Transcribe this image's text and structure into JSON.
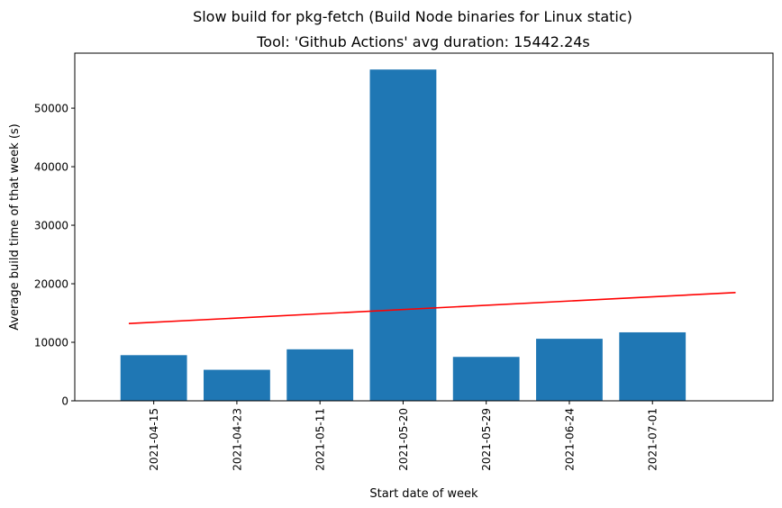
{
  "chart_data": {
    "type": "bar",
    "suptitle": "Slow build for pkg-fetch (Build Node binaries for Linux static)",
    "title": "Tool: 'Github Actions' avg duration: 15442.24s",
    "xlabel": "Start date of week",
    "ylabel": "Average build time of that week (s)",
    "categories": [
      "2021-04-15",
      "2021-04-23",
      "2021-05-11",
      "2021-05-20",
      "2021-05-29",
      "2021-06-24",
      "2021-07-01"
    ],
    "values": [
      7800,
      5300,
      8800,
      56600,
      7500,
      10600,
      11700
    ],
    "ylim": [
      0,
      59400
    ],
    "yticks": [
      0,
      10000,
      20000,
      30000,
      40000,
      50000
    ],
    "xlim": [
      -0.95,
      7.45
    ],
    "trend_line": {
      "x": [
        -0.3,
        7.0
      ],
      "y": [
        13200,
        18500
      ],
      "color": "#ff0000"
    },
    "bar_color": "#1f77b4",
    "grid": false,
    "legend": "none"
  }
}
